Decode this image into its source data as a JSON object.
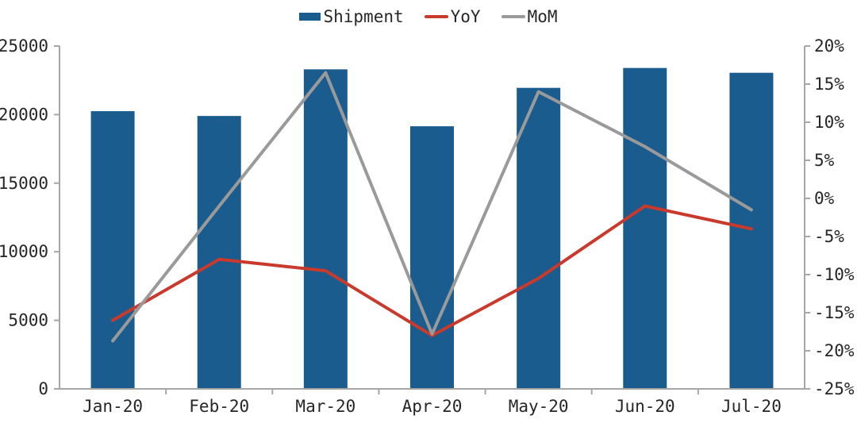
{
  "chart_data": {
    "type": "combo-bar-line",
    "title": "",
    "categories": [
      "Jan-20",
      "Feb-20",
      "Mar-20",
      "Apr-20",
      "May-20",
      "Jun-20",
      "Jul-20"
    ],
    "series": [
      {
        "name": "Shipment",
        "type": "bar",
        "axis": "left",
        "color": "#1b5c8e",
        "values": [
          20250,
          19900,
          23300,
          19150,
          21950,
          23400,
          23050
        ]
      },
      {
        "name": "YoY",
        "type": "line",
        "axis": "right",
        "color": "#c9392c",
        "values": [
          -16,
          -8,
          -9.5,
          -18,
          -10.5,
          -1,
          -4
        ]
      },
      {
        "name": "MoM",
        "type": "line",
        "axis": "right",
        "color": "#9a9a9a",
        "values": [
          -18.7,
          -1,
          16.5,
          -17.8,
          14,
          6.8,
          -1.5
        ]
      }
    ],
    "left_axis": {
      "min": 0,
      "max": 25000,
      "step": 5000,
      "tick_labels": [
        "0",
        "5000",
        "10000",
        "15000",
        "20000",
        "25000"
      ]
    },
    "right_axis": {
      "min": -25,
      "max": 20,
      "step": 5,
      "tick_labels": [
        "-25%",
        "-20%",
        "-15%",
        "-10%",
        "-5%",
        "0%",
        "5%",
        "10%",
        "15%",
        "20%"
      ]
    },
    "grid": false,
    "legend_position": "top-center",
    "axis_color": "#a6a6a6",
    "text_color": "#262626"
  }
}
